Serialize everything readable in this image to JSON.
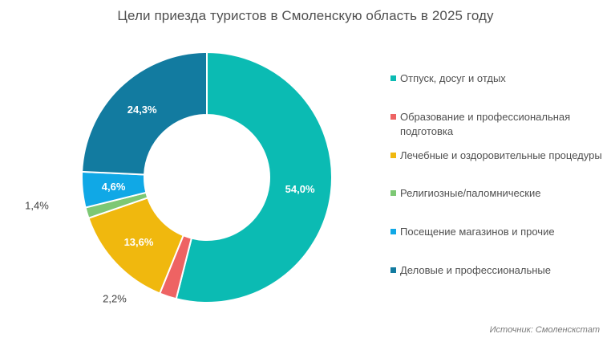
{
  "title": "Цели приезда туристов в Смоленскую область в 2025 году",
  "source": "Источник: Смоленскстат",
  "chart_data": {
    "type": "pie",
    "variant": "donut",
    "title": "Цели приезда туристов в Смоленскую область в 2025 году",
    "legend_position": "right",
    "categories": [
      "Отпуск, досуг и отдых",
      "Образование и профессиональная подготовка",
      "Лечебные и оздоровительные процедуры",
      "Религиозные/паломнические",
      "Посещение магазинов и прочие",
      "Деловые и профессиональные"
    ],
    "values": [
      54.0,
      2.2,
      13.6,
      1.4,
      4.6,
      24.3
    ],
    "labels": [
      "54,0%",
      "2,2%",
      "13,6%",
      "1,4%",
      "4,6%",
      "24,3%"
    ],
    "colors": [
      "#0BBBB3",
      "#EE6363",
      "#F0B80E",
      "#7DC874",
      "#10A8E6",
      "#127BA0"
    ],
    "label_placement": [
      "inside",
      "outside",
      "inside",
      "outside",
      "inside",
      "inside"
    ]
  }
}
